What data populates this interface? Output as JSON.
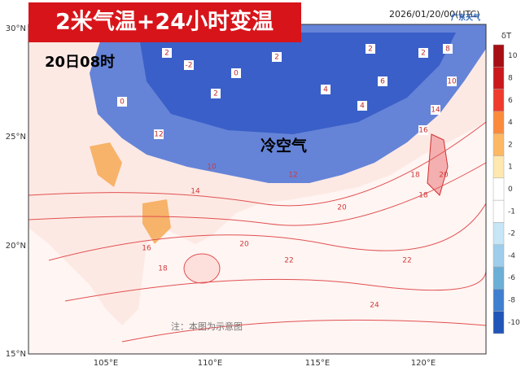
{
  "header": {
    "title": "2米气温+24小时变温",
    "timestamp": "2026/01/20/00(UTC)",
    "logo": "广东天气"
  },
  "map": {
    "date_label": "20日08时",
    "annotation": "冷空气",
    "note": "注：本图为示意图",
    "lat_labels": [
      "30°N",
      "25°N",
      "20°N",
      "15°N"
    ],
    "lon_labels": [
      "105°E",
      "110°E",
      "115°E",
      "120°E"
    ],
    "contour_labels": [
      "0",
      "2",
      "-2",
      "2",
      "0",
      "2",
      "4",
      "2",
      "6",
      "2",
      "4",
      "8",
      "10",
      "14",
      "16",
      "18",
      "20",
      "22",
      "12",
      "14",
      "16",
      "18",
      "20",
      "22",
      "24",
      "12",
      "10",
      "18",
      "20"
    ]
  },
  "colorbar": {
    "title": "δT",
    "levels": [
      {
        "label": "10",
        "color": "#a50f15"
      },
      {
        "label": "8",
        "color": "#cb181d"
      },
      {
        "label": "6",
        "color": "#ef3b2c"
      },
      {
        "label": "4",
        "color": "#fb8a3c"
      },
      {
        "label": "2",
        "color": "#fdb863"
      },
      {
        "label": "1",
        "color": "#fee8b0"
      },
      {
        "label": "0",
        "color": "#ffffff"
      },
      {
        "label": "-1",
        "color": "#ffffff"
      },
      {
        "label": "-2",
        "color": "#c6e6f5"
      },
      {
        "label": "-4",
        "color": "#9dcdeb"
      },
      {
        "label": "-6",
        "color": "#6baed6"
      },
      {
        "label": "-8",
        "color": "#3f7fcf"
      },
      {
        "label": "-10",
        "color": "#2156b8"
      }
    ]
  }
}
